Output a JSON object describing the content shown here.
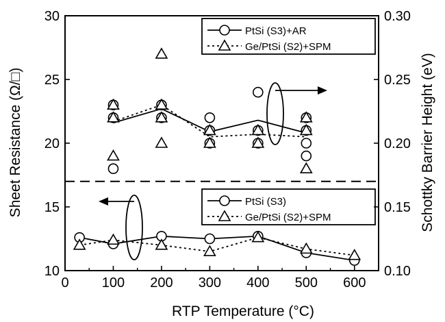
{
  "chart_data": {
    "type": "scatter",
    "xlabel": "RTP Temperature (°C)",
    "ylabel_left": "Sheet Resistance (Ω/□)",
    "ylabel_right": "Schottky Barrier Height (eV)",
    "xlim": [
      0,
      650
    ],
    "ylim_left": [
      10,
      30
    ],
    "ylim_right": [
      0.1,
      0.3
    ],
    "x_ticks": [
      "0",
      "100",
      "200",
      "300",
      "400",
      "500",
      "600"
    ],
    "y_ticks_left": [
      "10",
      "15",
      "20",
      "25",
      "30"
    ],
    "y_ticks_right": [
      "0.10",
      "0.15",
      "0.20",
      "0.25",
      "0.30"
    ],
    "divider_y": 17,
    "panels": [
      {
        "panel": "schottky-barrier-height",
        "axis": "right",
        "series": [
          {
            "name": "PtSi (S3)+AR",
            "marker": "circle",
            "line": "solid",
            "points": [
              [
                100,
                0.23
              ],
              [
                100,
                0.22
              ],
              [
                100,
                0.18
              ],
              [
                200,
                0.23
              ],
              [
                200,
                0.22
              ],
              [
                300,
                0.22
              ],
              [
                300,
                0.21
              ],
              [
                300,
                0.2
              ],
              [
                400,
                0.24
              ],
              [
                400,
                0.21
              ],
              [
                400,
                0.2
              ],
              [
                500,
                0.22
              ],
              [
                500,
                0.21
              ],
              [
                500,
                0.2
              ],
              [
                500,
                0.19
              ]
            ],
            "line_points": [
              [
                100,
                0.216
              ],
              [
                200,
                0.227
              ],
              [
                300,
                0.209
              ],
              [
                400,
                0.218
              ],
              [
                500,
                0.208
              ]
            ]
          },
          {
            "name": "Ge/PtSi (S2)+SPM",
            "marker": "triangle",
            "line": "dotted",
            "points": [
              [
                100,
                0.23
              ],
              [
                100,
                0.22
              ],
              [
                100,
                0.19
              ],
              [
                200,
                0.27
              ],
              [
                200,
                0.23
              ],
              [
                200,
                0.22
              ],
              [
                200,
                0.2
              ],
              [
                300,
                0.21
              ],
              [
                300,
                0.2
              ],
              [
                400,
                0.21
              ],
              [
                400,
                0.2
              ],
              [
                500,
                0.22
              ],
              [
                500,
                0.21
              ],
              [
                500,
                0.18
              ]
            ],
            "line_points": [
              [
                100,
                0.217
              ],
              [
                200,
                0.23
              ],
              [
                300,
                0.205
              ],
              [
                400,
                0.207
              ],
              [
                500,
                0.205
              ]
            ]
          }
        ]
      },
      {
        "panel": "sheet-resistance",
        "axis": "left",
        "series": [
          {
            "name": "PtSi (S3)",
            "marker": "circle",
            "line": "solid",
            "points": [
              [
                30,
                12.6
              ],
              [
                100,
                12.1
              ],
              [
                200,
                12.7
              ],
              [
                300,
                12.5
              ],
              [
                400,
                12.7
              ],
              [
                500,
                11.4
              ],
              [
                600,
                10.8
              ]
            ],
            "line_points": [
              [
                30,
                12.6
              ],
              [
                100,
                12.1
              ],
              [
                200,
                12.7
              ],
              [
                300,
                12.5
              ],
              [
                400,
                12.7
              ],
              [
                500,
                11.4
              ],
              [
                600,
                10.8
              ]
            ]
          },
          {
            "name": "Ge/PtSi (S2)+SPM",
            "marker": "triangle",
            "line": "dotted",
            "points": [
              [
                30,
                12.0
              ],
              [
                100,
                12.4
              ],
              [
                200,
                12.0
              ],
              [
                300,
                11.5
              ],
              [
                400,
                12.6
              ],
              [
                500,
                11.7
              ],
              [
                600,
                11.2
              ]
            ],
            "line_points": [
              [
                30,
                12.0
              ],
              [
                100,
                12.4
              ],
              [
                200,
                12.0
              ],
              [
                300,
                11.5
              ],
              [
                400,
                12.6
              ],
              [
                500,
                11.7
              ],
              [
                600,
                11.2
              ]
            ]
          }
        ]
      }
    ],
    "annotations": [
      {
        "type": "ellipse-with-arrow",
        "points_to": "right-axis",
        "at": [
          450,
          22
        ]
      },
      {
        "type": "ellipse-with-arrow",
        "points_to": "left-axis",
        "at": [
          160,
          13.2
        ]
      }
    ]
  }
}
